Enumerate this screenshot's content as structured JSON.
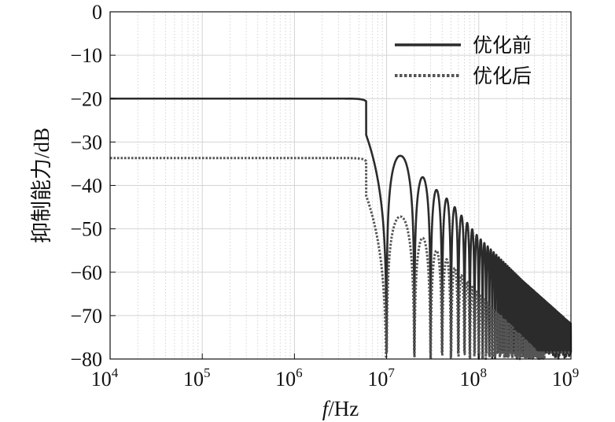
{
  "chart_data": {
    "type": "line",
    "xscale": "log",
    "xlim": [
      10000,
      1000000000
    ],
    "ylim": [
      -80,
      0
    ],
    "ylabel": "抑制能力/dB",
    "xlabel_italic": "f",
    "xlabel_rest": "/Hz",
    "grid": true,
    "legend_position": "top-right",
    "yticks": [
      0,
      -10,
      -20,
      -30,
      -40,
      -50,
      -60,
      -70,
      -80
    ],
    "ytick_labels": [
      "0",
      "−10",
      "−20",
      "−30",
      "−40",
      "−50",
      "−60",
      "−70",
      "−80"
    ],
    "xticks": [
      {
        "value": 10000,
        "base": "10",
        "exp": "4"
      },
      {
        "value": 100000,
        "base": "10",
        "exp": "5"
      },
      {
        "value": 1000000,
        "base": "10",
        "exp": "6"
      },
      {
        "value": 10000000,
        "base": "10",
        "exp": "7"
      },
      {
        "value": 100000000,
        "base": "10",
        "exp": "8"
      },
      {
        "value": 1000000000,
        "base": "10",
        "exp": "9"
      }
    ],
    "series": [
      {
        "name": "优化前",
        "style": "solid",
        "color": "#2b2b2b",
        "dc_level": -20,
        "corner_freq": 6000000,
        "null_spacing": 10000000,
        "lobe_peaks": [
          {
            "x": 14300000,
            "y": -33
          },
          {
            "x": 24500000,
            "y": -38
          },
          {
            "x": 34700000,
            "y": -41
          },
          {
            "x": 44800000,
            "y": -43
          },
          {
            "x": 54900000,
            "y": -45
          },
          {
            "x": 100000000,
            "y": -52
          },
          {
            "x": 300000000,
            "y": -62
          },
          {
            "x": 900000000,
            "y": -71
          }
        ]
      },
      {
        "name": "优化后",
        "style": "dotted",
        "color": "#555555",
        "dc_level": -33.7,
        "corner_freq": 6000000,
        "null_spacing": 10000000,
        "lobe_peaks": [
          {
            "x": 14300000,
            "y": -47
          },
          {
            "x": 24500000,
            "y": -52
          },
          {
            "x": 34700000,
            "y": -55
          },
          {
            "x": 44800000,
            "y": -57
          },
          {
            "x": 100000000,
            "y": -65
          },
          {
            "x": 300000000,
            "y": -75
          }
        ]
      }
    ]
  }
}
